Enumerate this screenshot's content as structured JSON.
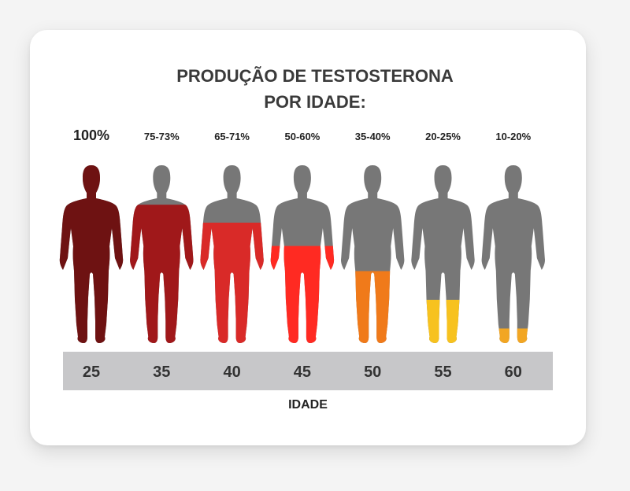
{
  "title": {
    "line1": "PRODUÇÃO DE TESTOSTERONA",
    "line2": "POR IDADE:"
  },
  "chart_data": {
    "type": "bar",
    "categories": [
      "25",
      "35",
      "40",
      "45",
      "50",
      "55",
      "60"
    ],
    "values": [
      100,
      74,
      68,
      55,
      37.5,
      22.5,
      15
    ],
    "data_labels": [
      "100%",
      "75-73%",
      "65-71%",
      "50-60%",
      "35-40%",
      "20-25%",
      "10-20%"
    ],
    "fill_fractions": [
      1.0,
      0.78,
      0.68,
      0.55,
      0.41,
      0.25,
      0.09
    ],
    "fill_colors": [
      "#6e1212",
      "#a0181a",
      "#d92a28",
      "#ff2a22",
      "#f07a1a",
      "#f7c21f",
      "#f2a623"
    ],
    "xlabel": "IDADE",
    "ylabel": "",
    "ylim": [
      0,
      100
    ]
  },
  "colors": {
    "body_gray": "#777777",
    "age_band": "#c7c7c9",
    "card_bg": "#ffffff"
  }
}
